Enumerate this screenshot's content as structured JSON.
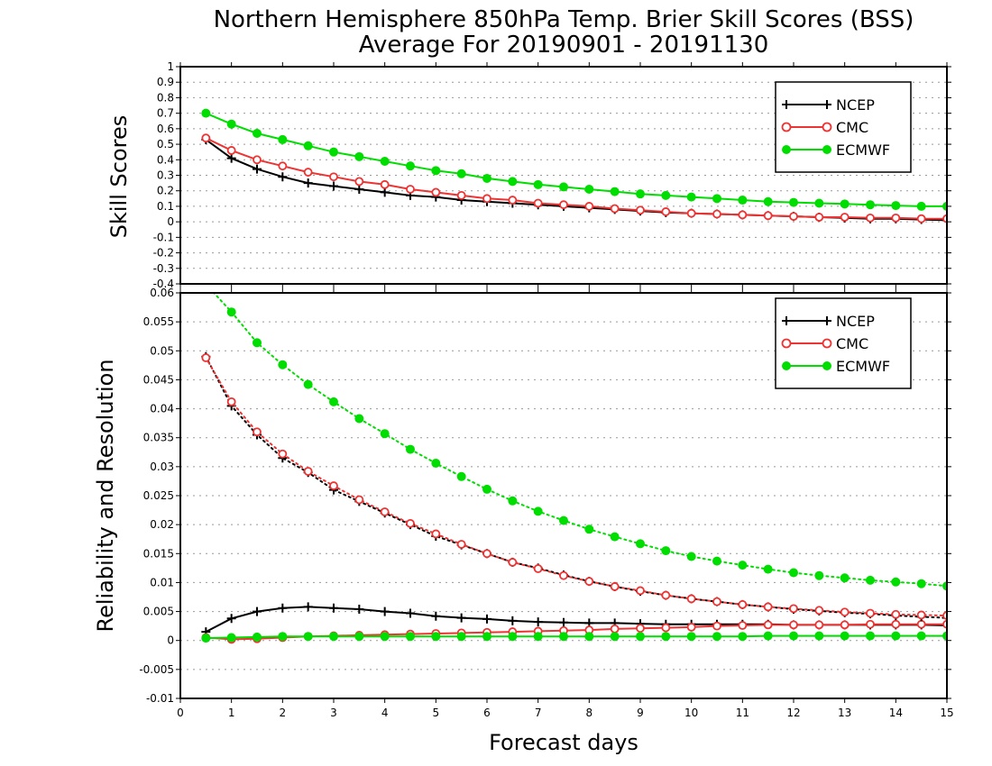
{
  "figure": {
    "title_line1": "Northern Hemisphere 850hPa Temp. Brier Skill Scores (BSS)",
    "title_line2": "Average For 20190901 - 20191130",
    "xlabel": "Forecast days"
  },
  "colors": {
    "NCEP": "#000000",
    "CMC": "#ee3333",
    "ECMWF": "#00dd00"
  },
  "chart_data": [
    {
      "type": "line",
      "ylabel": "Skill Scores",
      "xlim": [
        0,
        15
      ],
      "ylim": [
        -0.4,
        1
      ],
      "xticks": [
        0,
        1,
        2,
        3,
        4,
        5,
        6,
        7,
        8,
        9,
        10,
        11,
        12,
        13,
        14,
        15
      ],
      "yticks": [
        -0.4,
        -0.3,
        -0.2,
        -0.1,
        0,
        0.1,
        0.2,
        0.3,
        0.4,
        0.5,
        0.6,
        0.7,
        0.8,
        0.9,
        1
      ],
      "ytick_labels": [
        "-0.4",
        "-0.3",
        "-0.2",
        "-0.1",
        "0",
        "0.1",
        "0.2",
        "0.3",
        "0.4",
        "0.5",
        "0.6",
        "0.7",
        "0.8",
        "0.9",
        "1"
      ],
      "grid": true,
      "legend_position": "top-right",
      "x": [
        0.5,
        1,
        1.5,
        2,
        2.5,
        3,
        3.5,
        4,
        4.5,
        5,
        5.5,
        6,
        6.5,
        7,
        7.5,
        8,
        8.5,
        9,
        9.5,
        10,
        10.5,
        11,
        11.5,
        12,
        12.5,
        13,
        13.5,
        14,
        14.5,
        15
      ],
      "series": [
        {
          "name": "NCEP",
          "marker": "plus",
          "line": "solid",
          "values": [
            0.53,
            0.41,
            0.34,
            0.29,
            0.25,
            0.23,
            0.21,
            0.19,
            0.17,
            0.16,
            0.14,
            0.13,
            0.12,
            0.11,
            0.1,
            0.09,
            0.08,
            0.07,
            0.06,
            0.055,
            0.05,
            0.045,
            0.04,
            0.035,
            0.03,
            0.025,
            0.02,
            0.02,
            0.015,
            0.01
          ]
        },
        {
          "name": "CMC",
          "marker": "circle-open",
          "line": "solid",
          "values": [
            0.54,
            0.46,
            0.4,
            0.36,
            0.32,
            0.29,
            0.26,
            0.24,
            0.21,
            0.19,
            0.17,
            0.15,
            0.14,
            0.12,
            0.11,
            0.1,
            0.085,
            0.075,
            0.065,
            0.055,
            0.05,
            0.045,
            0.04,
            0.035,
            0.03,
            0.03,
            0.025,
            0.025,
            0.02,
            0.02
          ]
        },
        {
          "name": "ECMWF",
          "marker": "circle-filled",
          "line": "solid",
          "values": [
            0.7,
            0.63,
            0.57,
            0.53,
            0.49,
            0.45,
            0.42,
            0.39,
            0.36,
            0.33,
            0.31,
            0.28,
            0.26,
            0.24,
            0.225,
            0.21,
            0.195,
            0.18,
            0.17,
            0.16,
            0.15,
            0.14,
            0.13,
            0.125,
            0.12,
            0.115,
            0.11,
            0.105,
            0.1,
            0.1
          ]
        }
      ]
    },
    {
      "type": "line",
      "ylabel": "Reliability and Resolution",
      "xlim": [
        0,
        15
      ],
      "ylim": [
        -0.01,
        0.06
      ],
      "xticks": [
        0,
        1,
        2,
        3,
        4,
        5,
        6,
        7,
        8,
        9,
        10,
        11,
        12,
        13,
        14,
        15
      ],
      "xtick_labels": [
        "0",
        "1",
        "2",
        "3",
        "4",
        "5",
        "6",
        "7",
        "8",
        "9",
        "10",
        "11",
        "12",
        "13",
        "14",
        "15"
      ],
      "yticks": [
        -0.01,
        -0.005,
        0,
        0.005,
        0.01,
        0.015,
        0.02,
        0.025,
        0.03,
        0.035,
        0.04,
        0.045,
        0.05,
        0.055,
        0.06
      ],
      "ytick_labels": [
        "-0.01",
        "-0.005",
        "0",
        "0.005",
        "0.01",
        "0.015",
        "0.02",
        "0.025",
        "0.03",
        "0.035",
        "0.04",
        "0.045",
        "0.05",
        "0.055",
        "0.06"
      ],
      "grid": true,
      "legend_position": "top-right",
      "x": [
        0.5,
        1,
        1.5,
        2,
        2.5,
        3,
        3.5,
        4,
        4.5,
        5,
        5.5,
        6,
        6.5,
        7,
        7.5,
        8,
        8.5,
        9,
        9.5,
        10,
        10.5,
        11,
        11.5,
        12,
        12.5,
        13,
        13.5,
        14,
        14.5,
        15
      ],
      "series": [
        {
          "name": "NCEP",
          "marker": "plus",
          "line": "solid",
          "values": [
            0.0015,
            0.0038,
            0.005,
            0.0056,
            0.0058,
            0.0056,
            0.0054,
            0.005,
            0.0047,
            0.0042,
            0.0039,
            0.0037,
            0.0034,
            0.0032,
            0.0031,
            0.003,
            0.003,
            0.0029,
            0.0028,
            0.0028,
            0.0028,
            0.0028,
            0.0028,
            0.0027,
            0.0027,
            0.0027,
            0.0027,
            0.0027,
            0.0027,
            0.0026
          ]
        },
        {
          "name": "CMC",
          "marker": "circle-open",
          "line": "solid",
          "values": [
            0.0005,
            0.0002,
            0.0003,
            0.0005,
            0.0007,
            0.0008,
            0.0009,
            0.001,
            0.0011,
            0.0012,
            0.0013,
            0.0014,
            0.0015,
            0.0016,
            0.0017,
            0.0018,
            0.002,
            0.0021,
            0.0022,
            0.0023,
            0.0025,
            0.0026,
            0.0027,
            0.0027,
            0.0027,
            0.0027,
            0.0028,
            0.0028,
            0.0028,
            0.0028
          ]
        },
        {
          "name": "ECMWF",
          "marker": "circle-filled",
          "line": "solid",
          "values": [
            0.0004,
            0.0005,
            0.0006,
            0.0007,
            0.0007,
            0.0007,
            0.0007,
            0.0007,
            0.0007,
            0.0007,
            0.0007,
            0.0007,
            0.0007,
            0.0007,
            0.0007,
            0.0007,
            0.0007,
            0.0007,
            0.0007,
            0.0007,
            0.0007,
            0.0007,
            0.0008,
            0.0008,
            0.0008,
            0.0008,
            0.0008,
            0.0008,
            0.0008,
            0.0008
          ]
        },
        {
          "name": "NCEP",
          "marker": "plus",
          "line": "dotted",
          "values": [
            0.049,
            0.0405,
            0.0355,
            0.0315,
            0.029,
            0.026,
            0.024,
            0.022,
            0.02,
            0.018,
            0.0165,
            0.015,
            0.0135,
            0.0125,
            0.0113,
            0.0102,
            0.0093,
            0.0085,
            0.0078,
            0.0072,
            0.0067,
            0.0062,
            0.0058,
            0.0054,
            0.0051,
            0.0048,
            0.0046,
            0.0043,
            0.0041,
            0.0039
          ]
        },
        {
          "name": "CMC",
          "marker": "circle-open",
          "line": "dotted",
          "values": [
            0.0488,
            0.0412,
            0.036,
            0.0322,
            0.0292,
            0.0267,
            0.0243,
            0.0222,
            0.0202,
            0.0184,
            0.0166,
            0.015,
            0.0135,
            0.0124,
            0.0112,
            0.0102,
            0.0093,
            0.0086,
            0.0078,
            0.0072,
            0.0067,
            0.0062,
            0.0058,
            0.0055,
            0.0052,
            0.0049,
            0.0047,
            0.0045,
            0.0044,
            0.0043
          ]
        },
        {
          "name": "ECMWF",
          "marker": "circle-filled",
          "line": "dotted",
          "values": [
            0.0615,
            0.0567,
            0.0514,
            0.0476,
            0.0442,
            0.0412,
            0.0383,
            0.0357,
            0.033,
            0.0306,
            0.0283,
            0.0261,
            0.0241,
            0.0223,
            0.0207,
            0.0192,
            0.0179,
            0.0167,
            0.0155,
            0.0145,
            0.0137,
            0.013,
            0.0123,
            0.0117,
            0.0112,
            0.0108,
            0.0104,
            0.0101,
            0.0098,
            0.0094
          ]
        }
      ]
    }
  ]
}
